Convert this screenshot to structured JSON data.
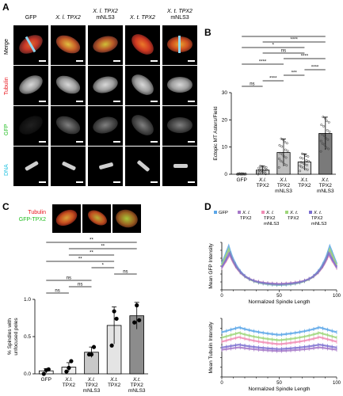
{
  "panelA": {
    "letter": "A",
    "columns": [
      "GFP",
      "X. l. TPX2",
      "X. l. TPX2 mNLS3",
      "X. t. TPX2",
      "X. t. TPX2 mNLS3"
    ],
    "column_lines": [
      [
        "GFP"
      ],
      [
        "X. l. TPX2"
      ],
      [
        "X. l. TPX2",
        "mNLS3"
      ],
      [
        "X. t. TPX2"
      ],
      [
        "X. t. TPX2",
        "mNLS3"
      ]
    ],
    "rows": [
      "Merge",
      "Tubulin",
      "GFP",
      "DNA"
    ],
    "row_colors": {
      "Merge": "#000000",
      "Tubulin": "#e8141c",
      "GFP": "#1fbd1f",
      "DNA": "#21c1e0"
    }
  },
  "panelB": {
    "letter": "B",
    "chart_data": {
      "type": "bar",
      "ylabel": "Ectopic MT Asters/Field",
      "ylim": [
        0,
        30
      ],
      "yticks": [
        0,
        10,
        20,
        30
      ],
      "categories": [
        [
          "GFP"
        ],
        [
          "X.l.",
          "TPX2"
        ],
        [
          "X.l.",
          "TPX2",
          "mNLS3"
        ],
        [
          "X.t.",
          "TPX2"
        ],
        [
          "X.t.",
          "TPX2",
          "mNLS3"
        ]
      ],
      "values": [
        0,
        1.5,
        8,
        4.5,
        15
      ],
      "errors": [
        0.3,
        1.5,
        5,
        3,
        6
      ],
      "bar_colors": [
        "#ffffff",
        "#e0e0e0",
        "#bdbdbd",
        "#d9d9d9",
        "#7a7a7a"
      ],
      "significance": [
        {
          "from": 0,
          "to": 1,
          "label": "ns"
        },
        {
          "from": 1,
          "to": 2,
          "label": "****"
        },
        {
          "from": 2,
          "to": 3,
          "label": "***"
        },
        {
          "from": 3,
          "to": 4,
          "label": "****"
        },
        {
          "from": 0,
          "to": 2,
          "label": "****"
        },
        {
          "from": 2,
          "to": 4,
          "label": "****"
        },
        {
          "from": 1,
          "to": 3,
          "label": "ns"
        },
        {
          "from": 0,
          "to": 3,
          "label": "*"
        },
        {
          "from": 1,
          "to": 4,
          "label": "****"
        },
        {
          "from": 0,
          "to": 4,
          "label": "****"
        }
      ]
    }
  },
  "panelC": {
    "letter": "C",
    "legend": [
      "Tubulin",
      "GFP-TPX2"
    ],
    "legend_colors": [
      "#e8141c",
      "#1fbd1f"
    ],
    "chart_data": {
      "type": "bar",
      "ylabel": "% Spindles with unfocused poles",
      "ylabel_lines": [
        "% Spindles with",
        "unfocused poles"
      ],
      "ylim": [
        0,
        1.0
      ],
      "yticks": [
        0.0,
        0.5,
        1.0
      ],
      "ytick_labels": [
        "0.0",
        "0.5",
        "1.0"
      ],
      "categories": [
        [
          "GFP"
        ],
        [
          "X.l.",
          "TPX2"
        ],
        [
          "X.l.",
          "TPX2",
          "mNLS3"
        ],
        [
          "X.t.",
          "TPX2"
        ],
        [
          "X.t.",
          "TPX2",
          "mNLS3"
        ]
      ],
      "values": [
        0.04,
        0.09,
        0.29,
        0.65,
        0.78
      ],
      "errors": [
        0.03,
        0.06,
        0.07,
        0.25,
        0.18
      ],
      "points": [
        [
          0.0,
          0.05,
          0.06
        ],
        [
          0.03,
          0.08,
          0.17
        ],
        [
          0.26,
          0.26,
          0.36
        ],
        [
          0.38,
          0.84,
          0.74
        ],
        [
          0.69,
          0.92,
          0.72
        ]
      ],
      "bar_colors": [
        "#ffffff",
        "#eeeeee",
        "#c8c8c8",
        "#e4e4e4",
        "#8c8c8c"
      ],
      "significance": [
        {
          "from": 0,
          "to": 1,
          "label": "ns"
        },
        {
          "from": 1,
          "to": 2,
          "label": "ns"
        },
        {
          "from": 0,
          "to": 2,
          "label": "ns"
        },
        {
          "from": 3,
          "to": 4,
          "label": "ns"
        },
        {
          "from": 2,
          "to": 3,
          "label": "*"
        },
        {
          "from": 0,
          "to": 3,
          "label": "**"
        },
        {
          "from": 1,
          "to": 3,
          "label": "**"
        },
        {
          "from": 1,
          "to": 4,
          "label": "**"
        },
        {
          "from": 0,
          "to": 4,
          "label": "**"
        }
      ]
    }
  },
  "panelD": {
    "letter": "D",
    "legend": [
      {
        "name": "GFP",
        "lines": [
          "GFP"
        ],
        "color": "#5aa6e8"
      },
      {
        "name": "X. l. TPX2",
        "lines": [
          "X. l.",
          "TPX2"
        ],
        "color": "#a678c8"
      },
      {
        "name": "X. l. TPX2 mNLS3",
        "lines": [
          "X. l.",
          "TPX2",
          "mNLS3"
        ],
        "color": "#f08cb4"
      },
      {
        "name": "X. t. TPX2",
        "lines": [
          "X. t.",
          "TPX2"
        ],
        "color": "#9ed67a"
      },
      {
        "name": "X. t. TPX2 mNLS3",
        "lines": [
          "X. t.",
          "TPX2",
          "mNLS3"
        ],
        "color": "#7b6fd0"
      }
    ],
    "chart_data": [
      {
        "type": "line",
        "xlabel": "Normalized Spindle Length",
        "ylabel": "Mean GFP Intensity",
        "xlim": [
          0,
          100
        ],
        "xticks": [
          0,
          50,
          100
        ],
        "series": [
          {
            "name": "GFP",
            "edge": 1.0,
            "mid": 0.1,
            "peak_pos": 6
          },
          {
            "name": "X. l. TPX2",
            "edge": 0.88,
            "mid": 0.12,
            "peak_pos": 6
          },
          {
            "name": "X. l. TPX2 mNLS3",
            "edge": 0.8,
            "mid": 0.13,
            "peak_pos": 7
          },
          {
            "name": "X. t. TPX2",
            "edge": 0.93,
            "mid": 0.11,
            "peak_pos": 6
          },
          {
            "name": "X. t. TPX2 mNLS3",
            "edge": 0.84,
            "mid": 0.12,
            "peak_pos": 7
          }
        ]
      },
      {
        "type": "line",
        "xlabel": "Normalized Spindle Length",
        "ylabel": "Mean Tubulin Intensity",
        "xlim": [
          0,
          100
        ],
        "xticks": [
          0,
          50,
          100
        ],
        "series": [
          {
            "name": "GFP",
            "edge": 0.92,
            "mid": 0.72,
            "peak_pos": 15
          },
          {
            "name": "X. l. TPX2",
            "edge": 0.55,
            "mid": 0.45,
            "peak_pos": 15
          },
          {
            "name": "X. l. TPX2 mNLS3",
            "edge": 0.74,
            "mid": 0.55,
            "peak_pos": 15
          },
          {
            "name": "X. t. TPX2",
            "edge": 0.82,
            "mid": 0.62,
            "peak_pos": 15
          },
          {
            "name": "X. t. TPX2 mNLS3",
            "edge": 0.6,
            "mid": 0.48,
            "peak_pos": 15
          }
        ]
      }
    ]
  }
}
